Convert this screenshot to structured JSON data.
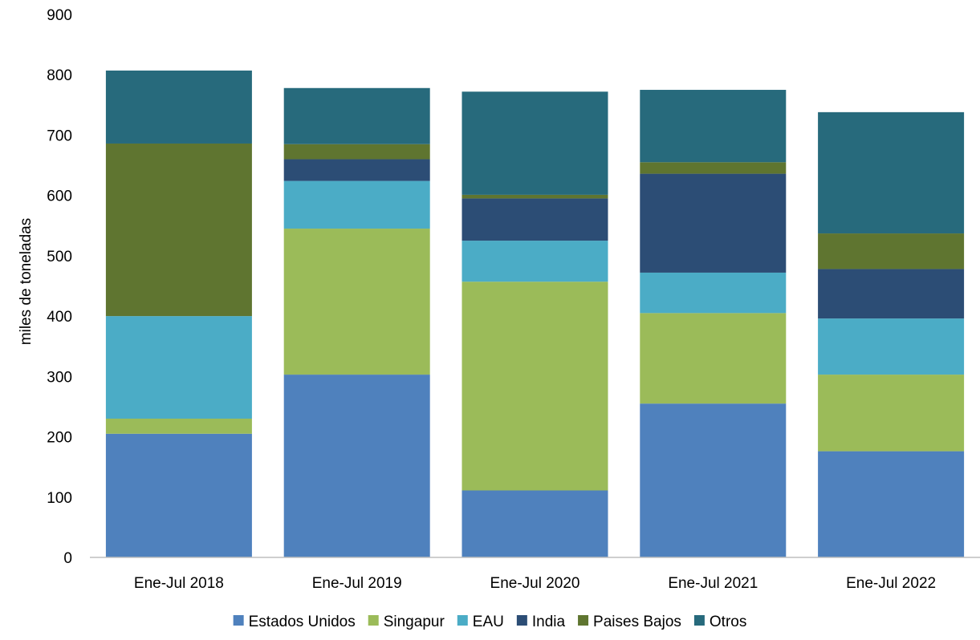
{
  "chart_data": {
    "type": "bar",
    "stacked": true,
    "title": "",
    "xlabel": "",
    "ylabel": "miles de toneladas",
    "ylim": [
      0,
      900
    ],
    "yticks": [
      0,
      100,
      200,
      300,
      400,
      500,
      600,
      700,
      800,
      900
    ],
    "grid": false,
    "legend_position": "bottom",
    "categories": [
      "Ene-Jul 2018",
      "Ene-Jul 2019",
      "Ene-Jul 2020",
      "Ene-Jul 2021",
      "Ene-Jul 2022"
    ],
    "series": [
      {
        "name": "Estados Unidos",
        "color": "#4F81BD",
        "values": [
          205,
          303,
          111,
          255,
          176
        ]
      },
      {
        "name": "Singapur",
        "color": "#9BBB59",
        "values": [
          25,
          242,
          346,
          150,
          127
        ]
      },
      {
        "name": "EAU",
        "color": "#4BACC6",
        "values": [
          170,
          79,
          68,
          67,
          93
        ]
      },
      {
        "name": "India",
        "color": "#2C4D75",
        "values": [
          0,
          36,
          70,
          164,
          82
        ]
      },
      {
        "name": "Paises Bajos",
        "color": "#5F7530",
        "values": [
          286,
          25,
          6,
          19,
          59
        ]
      },
      {
        "name": "Otros",
        "color": "#276A7C",
        "values": [
          121,
          93,
          171,
          120,
          201
        ]
      }
    ]
  }
}
